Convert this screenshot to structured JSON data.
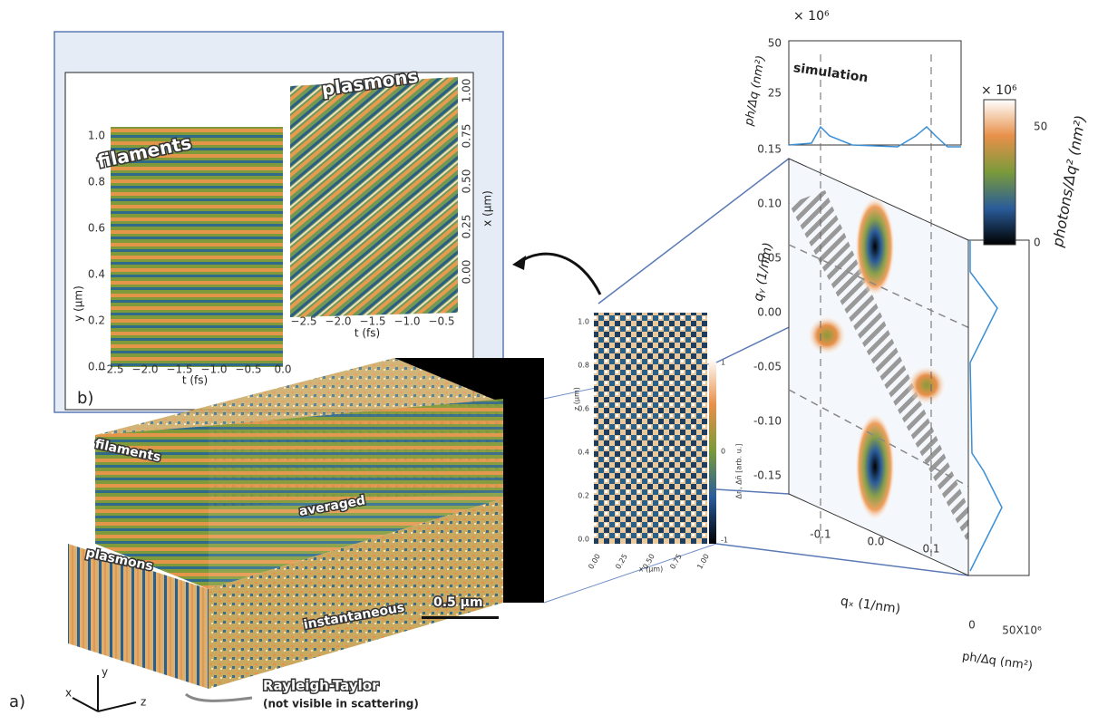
{
  "panel_b": {
    "label": "b)",
    "left_title": "filaments",
    "right_title": "plasmons",
    "left_y_label": "y (μm)",
    "left_yticks": [
      "0.0",
      "0.2",
      "0.4",
      "0.6",
      "0.8",
      "1.0"
    ],
    "left_xticks": [
      "−2.5",
      "−2.0",
      "−1.5",
      "−1.0",
      "−0.5",
      "0.0"
    ],
    "left_x_label": "t (fs)",
    "right_xticks": [
      "−2.5",
      "−2.0",
      "−1.5",
      "−1.0",
      "−0.5"
    ],
    "right_x_label": "t (fs)",
    "right_y_label": "x (μm)",
    "right_yticks": [
      "0.00",
      "0.25",
      "0.50",
      "0.75",
      "1.00"
    ]
  },
  "panel_a": {
    "label": "a)",
    "filaments": "filaments",
    "averaged": "averaged",
    "plasmons": "plasmons",
    "instantaneous": "instantaneous",
    "scale_bar": "0.5 μm",
    "rt_title": "Rayleigh-Taylor",
    "rt_note": "(not visible in scattering)",
    "axes": [
      "x",
      "y",
      "z"
    ]
  },
  "slice": {
    "z_label": "z (μm)",
    "zticks": [
      "0.0",
      "0.2",
      "0.4",
      "0.6",
      "0.8",
      "1.0"
    ],
    "x_label": "x (μm)",
    "xticks": [
      "0.00",
      "0.25",
      "0.50",
      "0.75",
      "1.00"
    ],
    "cbar_label": "Δn, Δn̄ [arb. u.]",
    "cbar_ticks": [
      "1",
      "0",
      "-1"
    ]
  },
  "scattering": {
    "title": "simulation",
    "top_multiplier": "× 10⁶",
    "top_y_label": "ph/Δq (nm²)",
    "top_yticks": [
      "50",
      "25"
    ],
    "qy_label": "qᵧ (1/nm)",
    "qyticks": [
      "0.15",
      "0.10",
      "0.05",
      "0.00",
      "-0.05",
      "-0.10",
      "-0.15"
    ],
    "qx_label": "qₓ (1/nm)",
    "qxticks": [
      "-0.1",
      "0.0",
      "0.1"
    ],
    "side_xticks": [
      "0",
      "50X10⁶"
    ],
    "side_x_label": "ph/Δq (nm²)",
    "cbar_multiplier": "× 10⁶",
    "cbar_ticks": [
      "50",
      "0"
    ],
    "cbar_label": "photons/Δq² (nm²)"
  }
}
